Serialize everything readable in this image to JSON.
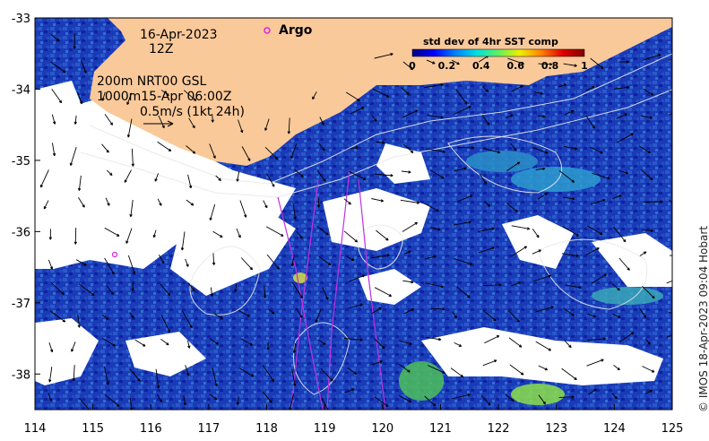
{
  "map": {
    "lon_range": [
      114,
      125
    ],
    "lat_range": [
      -38.5,
      -33
    ],
    "x_ticks": [
      "114",
      "115",
      "116",
      "117",
      "118",
      "119",
      "120",
      "121",
      "122",
      "123",
      "124",
      "125"
    ],
    "y_ticks": [
      "-33",
      "-34",
      "-35",
      "-36",
      "-37",
      "-38"
    ],
    "land_color": "#fac99a",
    "cloud_color": "#ffffff",
    "ocean_low_color": "#1530a8",
    "ocean_high_color": "#66d46a"
  },
  "annotations": {
    "date": "16-Apr-2023",
    "hour": "12Z",
    "line1": "200m  NRT00 GSL",
    "line2": "1000m15-Apr 06:00Z",
    "velocity_scale": "0.5m/s (1kt 24h)",
    "argo_label": "Argo",
    "argo_marker_color": "#e020e0"
  },
  "colorbar": {
    "title": "std dev of 4hr SST comp",
    "ticks": [
      "0",
      "0.2",
      "0.4",
      "0.6",
      "0.8",
      "1"
    ],
    "colors": [
      "#000080",
      "#0000ff",
      "#0080ff",
      "#00e0e0",
      "#60f060",
      "#f0f000",
      "#ff8000",
      "#e00000",
      "#800000"
    ]
  },
  "credit": "© IMOS 18-Apr-2023 09:04 Hobart"
}
